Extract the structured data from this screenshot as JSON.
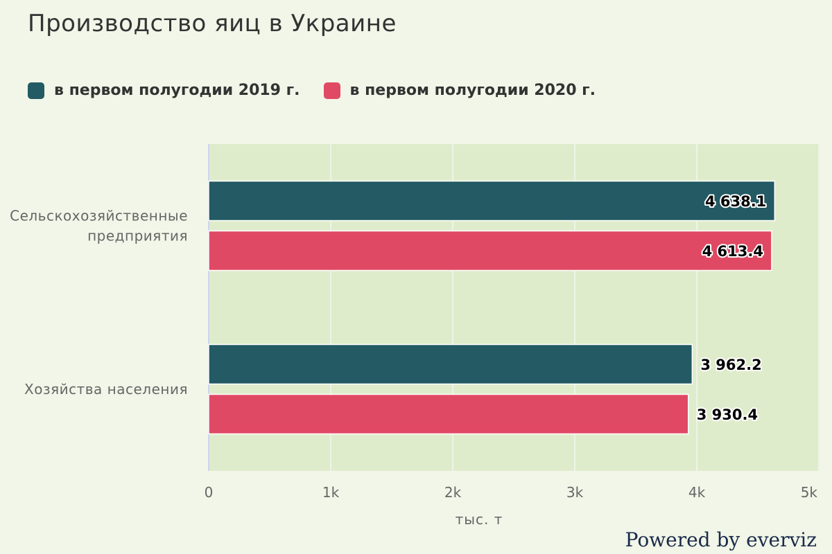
{
  "title": "Производство яиц в Украине",
  "credit": "Powered by everviz",
  "colors": {
    "background": "#f1f6e8",
    "plot_background": "#dfeccb",
    "grid": "#eef3e6",
    "axis_line": "#ccd6eb"
  },
  "chart_data": {
    "type": "bar",
    "orientation": "horizontal",
    "categories": [
      "Сельскохозяйственные предприятия",
      "Хозяйства населения"
    ],
    "category_labels": [
      [
        "Сельскохозяйственные",
        "предприятия"
      ],
      [
        "Хозяйства населения"
      ]
    ],
    "series": [
      {
        "name": "в первом полугодии 2019 г.",
        "color": "#235a64",
        "values": [
          4638.1,
          3962.2
        ],
        "labels": [
          "4 638.1",
          "3 962.2"
        ]
      },
      {
        "name": "в первом полугодии 2020 г.",
        "color": "#e04963",
        "values": [
          4613.4,
          3930.4
        ],
        "labels": [
          "4 613.4",
          "3 930.4"
        ]
      }
    ],
    "xlabel": "тыс. т",
    "xlim": [
      0,
      5000
    ],
    "ticks": [
      0,
      1000,
      2000,
      3000,
      4000,
      5000
    ],
    "tick_labels": [
      "0",
      "1k",
      "2k",
      "3k",
      "4k",
      "5k"
    ],
    "grid": true,
    "legend": "top-left"
  }
}
